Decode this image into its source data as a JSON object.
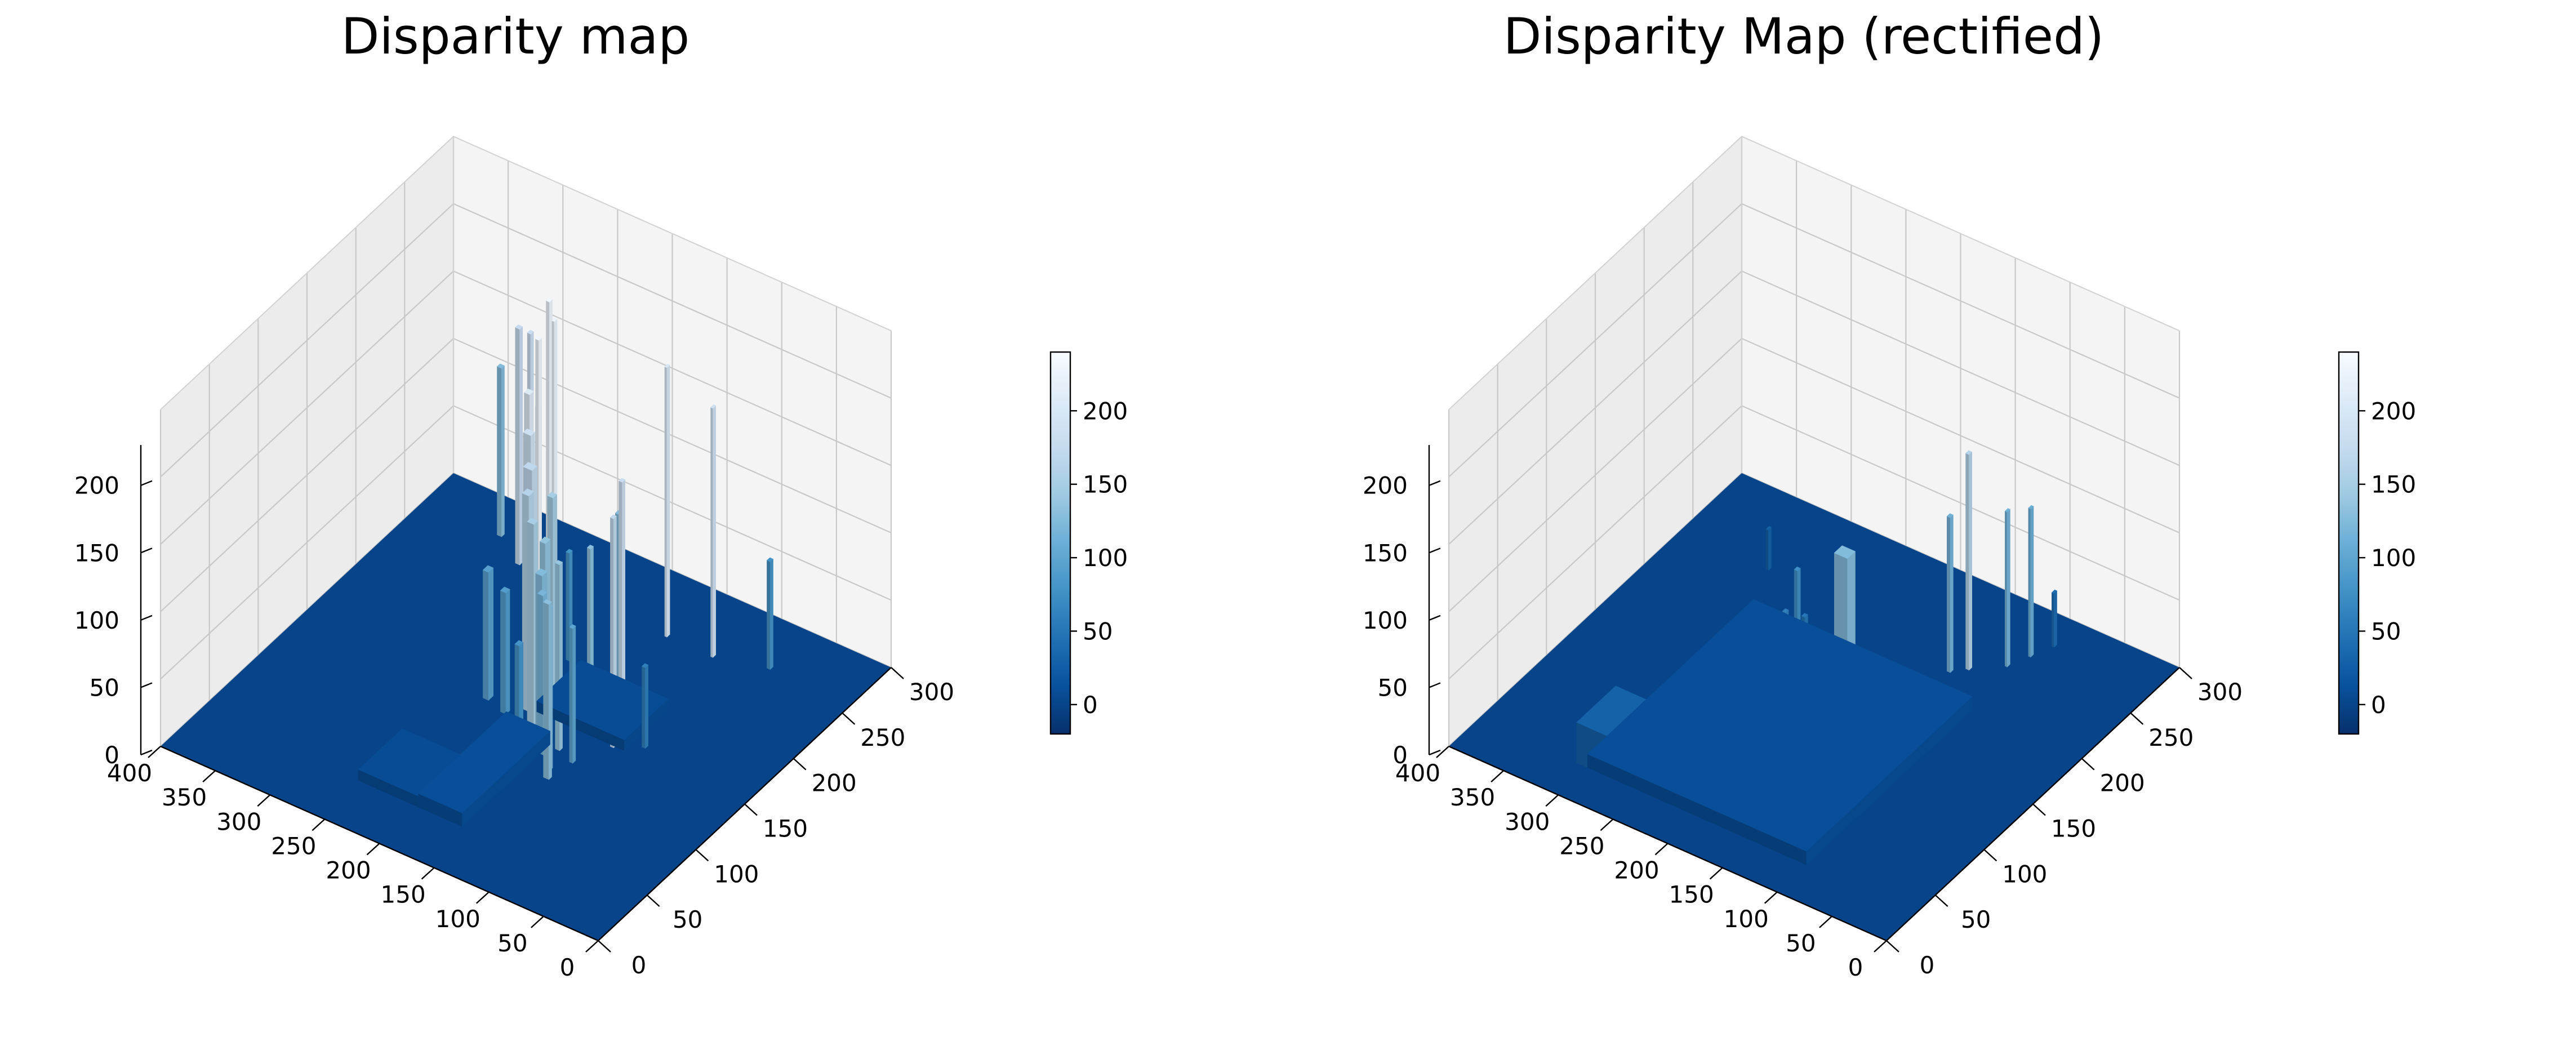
{
  "chart_data": [
    {
      "type": "surface",
      "title": "Disparity map",
      "colormap": "Blues_r",
      "x_range": [
        0,
        400
      ],
      "y_range": [
        0,
        300
      ],
      "z_range": [
        0,
        230
      ],
      "x_ticks": [
        "400",
        "350",
        "300",
        "250",
        "200",
        "150",
        "100",
        "50",
        "0"
      ],
      "y_ticks": [
        "0",
        "50",
        "100",
        "150",
        "200",
        "250",
        "300"
      ],
      "z_ticks": [
        "0",
        "50",
        "100",
        "150",
        "200"
      ],
      "colorbar": {
        "min": -20,
        "max": 240,
        "ticks": [
          "200",
          "150",
          "100",
          "50",
          "0"
        ]
      },
      "floor_value": 0,
      "grid": true,
      "spikes": [
        {
          "x": 330,
          "y": 270,
          "z": 125,
          "w": 4,
          "d": 3
        },
        {
          "x": 300,
          "y": 255,
          "z": 175,
          "w": 4,
          "d": 3
        },
        {
          "x": 285,
          "y": 250,
          "z": 180,
          "w": 3,
          "d": 3
        },
        {
          "x": 250,
          "y": 230,
          "z": 230,
          "w": 3,
          "d": 3
        },
        {
          "x": 238,
          "y": 222,
          "z": 225,
          "w": 2,
          "d": 3
        },
        {
          "x": 233,
          "y": 200,
          "z": 228,
          "w": 3,
          "d": 3
        },
        {
          "x": 258,
          "y": 228,
          "z": 150,
          "w": 3,
          "d": 3
        },
        {
          "x": 232,
          "y": 186,
          "z": 120,
          "w": 4,
          "d": 3
        },
        {
          "x": 224,
          "y": 180,
          "z": 205,
          "w": 5,
          "d": 4
        },
        {
          "x": 215,
          "y": 170,
          "z": 185,
          "w": 7,
          "d": 4
        },
        {
          "x": 205,
          "y": 160,
          "z": 170,
          "w": 8,
          "d": 5
        },
        {
          "x": 198,
          "y": 150,
          "z": 160,
          "w": 6,
          "d": 5
        },
        {
          "x": 192,
          "y": 168,
          "z": 148,
          "w": 5,
          "d": 4
        },
        {
          "x": 185,
          "y": 140,
          "z": 150,
          "w": 6,
          "d": 4
        },
        {
          "x": 178,
          "y": 145,
          "z": 135,
          "w": 5,
          "d": 5
        },
        {
          "x": 168,
          "y": 130,
          "z": 125,
          "w": 6,
          "d": 5
        },
        {
          "x": 160,
          "y": 122,
          "z": 118,
          "w": 5,
          "d": 4
        },
        {
          "x": 152,
          "y": 130,
          "z": 138,
          "w": 4,
          "d": 3
        },
        {
          "x": 145,
          "y": 112,
          "z": 120,
          "w": 4,
          "d": 3
        },
        {
          "x": 140,
          "y": 105,
          "z": 130,
          "w": 5,
          "d": 3
        },
        {
          "x": 135,
          "y": 125,
          "z": 100,
          "w": 3,
          "d": 3
        },
        {
          "x": 230,
          "y": 145,
          "z": 95,
          "w": 5,
          "d": 5
        },
        {
          "x": 210,
          "y": 140,
          "z": 90,
          "w": 5,
          "d": 4
        },
        {
          "x": 175,
          "y": 115,
          "z": 80,
          "w": 4,
          "d": 4
        },
        {
          "x": 150,
          "y": 160,
          "z": 130,
          "w": 3,
          "d": 3
        },
        {
          "x": 160,
          "y": 200,
          "z": 125,
          "w": 3,
          "d": 3
        },
        {
          "x": 160,
          "y": 250,
          "z": 200,
          "w": 2,
          "d": 3
        },
        {
          "x": 118,
          "y": 250,
          "z": 185,
          "w": 2,
          "d": 3
        },
        {
          "x": 75,
          "y": 260,
          "z": 80,
          "w": 3,
          "d": 3
        },
        {
          "x": 130,
          "y": 170,
          "z": 180,
          "w": 3,
          "d": 3
        },
        {
          "x": 120,
          "y": 150,
          "z": 170,
          "w": 3,
          "d": 3
        },
        {
          "x": 100,
          "y": 160,
          "z": 60,
          "w": 3,
          "d": 3
        },
        {
          "x": 205,
          "y": 200,
          "z": 80,
          "w": 3,
          "d": 3
        }
      ],
      "ridges": [
        {
          "x0": 160,
          "x1": 200,
          "y0": 40,
          "y1": 130,
          "z": 10
        },
        {
          "x0": 170,
          "x1": 255,
          "y0": 40,
          "y1": 85,
          "z": 8
        },
        {
          "x0": 110,
          "x1": 190,
          "y0": 150,
          "y1": 195,
          "z": 8
        }
      ]
    },
    {
      "type": "surface",
      "title": "Disparity Map (rectified)",
      "colormap": "Blues_r",
      "x_range": [
        0,
        400
      ],
      "y_range": [
        0,
        300
      ],
      "z_range": [
        0,
        230
      ],
      "x_ticks": [
        "400",
        "350",
        "300",
        "250",
        "200",
        "150",
        "100",
        "50",
        "0"
      ],
      "y_ticks": [
        "0",
        "50",
        "100",
        "150",
        "200",
        "250",
        "300"
      ],
      "z_ticks": [
        "0",
        "50",
        "100",
        "150",
        "200"
      ],
      "colorbar": {
        "min": -20,
        "max": 240,
        "ticks": [
          "200",
          "150",
          "100",
          "50",
          "0"
        ]
      },
      "floor_value": 0,
      "grid": true,
      "spikes": [
        {
          "x": 172,
          "y": 150,
          "z": 125,
          "w": 12,
          "d": 8
        },
        {
          "x": 252,
          "y": 112,
          "z": 55,
          "w": 3,
          "d": 3
        },
        {
          "x": 235,
          "y": 172,
          "z": 75,
          "w": 3,
          "d": 3
        },
        {
          "x": 228,
          "y": 152,
          "z": 60,
          "w": 3,
          "d": 3
        },
        {
          "x": 222,
          "y": 165,
          "z": 50,
          "w": 3,
          "d": 3
        },
        {
          "x": 140,
          "y": 222,
          "z": 115,
          "w": 3,
          "d": 3
        },
        {
          "x": 130,
          "y": 230,
          "z": 160,
          "w": 3,
          "d": 3
        },
        {
          "x": 108,
          "y": 245,
          "z": 115,
          "w": 2,
          "d": 3
        },
        {
          "x": 100,
          "y": 260,
          "z": 110,
          "w": 2,
          "d": 3
        },
        {
          "x": 92,
          "y": 275,
          "z": 40,
          "w": 2,
          "d": 3
        },
        {
          "x": 320,
          "y": 238,
          "z": 30,
          "w": 2,
          "d": 3
        },
        {
          "x": 130,
          "y": 140,
          "z": 60,
          "w": 3,
          "d": 3
        }
      ],
      "ridges": [
        {
          "x0": 100,
          "x1": 300,
          "y0": 30,
          "y1": 200,
          "z": 10
        },
        {
          "x0": 150,
          "x1": 270,
          "y0": 60,
          "y1": 140,
          "z": 22
        },
        {
          "x0": 280,
          "x1": 310,
          "y0": 30,
          "y1": 70,
          "z": 30
        },
        {
          "x0": 200,
          "x1": 250,
          "y0": 100,
          "y1": 135,
          "z": 30
        }
      ]
    }
  ]
}
